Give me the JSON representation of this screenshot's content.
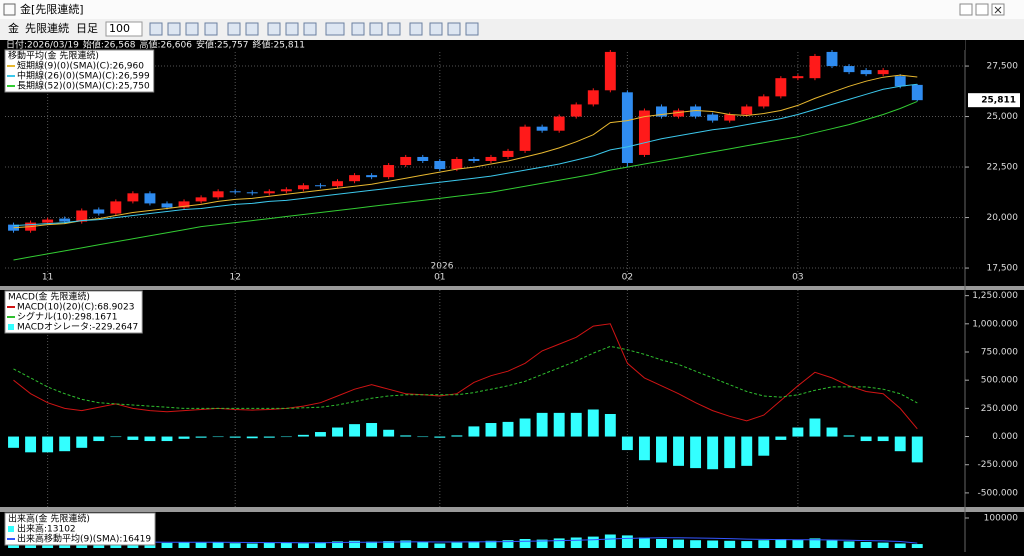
{
  "window": {
    "title": "金[先限連続]"
  },
  "toolbar": {
    "symbol": "金",
    "contract": "先限連続",
    "period": "日足",
    "count": 100
  },
  "chart_data": [
    {
      "type": "candlestick",
      "title": "移動平均(金 先限連続)",
      "header": [
        "日付:2026/03/19",
        "始値:26,568",
        "高値:26,606",
        "安値:25,757",
        "終値:25,811"
      ],
      "annotations": [
        "2026"
      ],
      "categories": [
        null,
        null,
        "11",
        null,
        null,
        null,
        null,
        null,
        null,
        null,
        null,
        null,
        null,
        "12",
        null,
        null,
        null,
        null,
        null,
        null,
        null,
        null,
        null,
        null,
        null,
        "01",
        null,
        null,
        null,
        null,
        null,
        null,
        null,
        null,
        null,
        null,
        "02",
        null,
        null,
        null,
        null,
        null,
        null,
        null,
        null,
        null,
        "03",
        null,
        null,
        null,
        null,
        null,
        null,
        null
      ],
      "open": [
        19650,
        19350,
        19750,
        19950,
        19800,
        20400,
        20200,
        20800,
        21200,
        20700,
        20500,
        20800,
        21000,
        21300,
        21250,
        21200,
        21300,
        21400,
        21600,
        21550,
        21800,
        22100,
        22000,
        22600,
        23000,
        22800,
        22400,
        22900,
        22800,
        23000,
        23300,
        24500,
        24300,
        25000,
        25600,
        26300,
        26200,
        23100,
        25500,
        25000,
        25500,
        25100,
        24800,
        25100,
        25500,
        26000,
        26900,
        26900,
        28200,
        27500,
        27300,
        27100,
        27000,
        26568
      ],
      "high": [
        19750,
        19850,
        20000,
        20050,
        20450,
        20500,
        20900,
        21300,
        21300,
        20800,
        20900,
        21100,
        21400,
        21400,
        21350,
        21400,
        21500,
        21700,
        21700,
        21900,
        22200,
        22200,
        22700,
        23100,
        23100,
        22900,
        23000,
        23000,
        23100,
        23400,
        24600,
        24600,
        25100,
        25700,
        26400,
        28400,
        26300,
        25400,
        25600,
        25400,
        25600,
        25200,
        25200,
        25600,
        26100,
        27000,
        27100,
        28100,
        28300,
        27600,
        27400,
        27400,
        27100,
        26606
      ],
      "low": [
        19250,
        19250,
        19650,
        19700,
        19700,
        20100,
        20100,
        20700,
        20600,
        20400,
        20400,
        20700,
        20900,
        21150,
        21100,
        21100,
        21200,
        21300,
        21450,
        21450,
        21700,
        21900,
        21900,
        22500,
        22700,
        22300,
        22300,
        22700,
        22700,
        22900,
        23200,
        24200,
        24200,
        24900,
        25500,
        26200,
        22500,
        23000,
        24900,
        24900,
        24900,
        24700,
        24700,
        25000,
        25400,
        25900,
        26800,
        26800,
        27400,
        27100,
        27000,
        27000,
        26400,
        25757
      ],
      "close": [
        19350,
        19750,
        19900,
        19800,
        20350,
        20200,
        20800,
        21200,
        20700,
        20500,
        20800,
        21000,
        21300,
        21250,
        21200,
        21300,
        21400,
        21600,
        21550,
        21800,
        22100,
        22000,
        22600,
        23000,
        22800,
        22400,
        22900,
        22800,
        23000,
        23300,
        24500,
        24300,
        25000,
        25600,
        26300,
        28200,
        22700,
        25300,
        25000,
        25300,
        25000,
        24800,
        25100,
        25500,
        26000,
        26900,
        27000,
        28000,
        27500,
        27200,
        27100,
        27300,
        26500,
        25811
      ],
      "up_color": "#ff1a1a",
      "down_color": "#2f8cf0",
      "last_price": {
        "value": 25811,
        "label": "25,811"
      },
      "series": [
        {
          "name": "短期線(9)(0)(SMA)(C):26,960",
          "color": "#e8b830",
          "style": "line",
          "values": [
            19500,
            19550,
            19650,
            19700,
            19850,
            19950,
            20100,
            20250,
            20350,
            20450,
            20550,
            20650,
            20800,
            20900,
            20950,
            21050,
            21150,
            21250,
            21350,
            21450,
            21550,
            21650,
            21800,
            21950,
            22100,
            22250,
            22400,
            22500,
            22650,
            22800,
            23000,
            23200,
            23450,
            23750,
            24100,
            24700,
            24800,
            25000,
            25100,
            25200,
            25300,
            25250,
            25100,
            25050,
            25150,
            25300,
            25550,
            25900,
            26200,
            26500,
            26750,
            26950,
            27050,
            26960
          ]
        },
        {
          "name": "中期線(26)(0)(SMA)(C):26,599",
          "color": "#3cc8ec",
          "style": "line",
          "values": [
            19600,
            19650,
            19700,
            19750,
            19850,
            19900,
            20000,
            20100,
            20200,
            20300,
            20400,
            20450,
            20550,
            20650,
            20700,
            20800,
            20850,
            20950,
            21050,
            21150,
            21250,
            21350,
            21450,
            21550,
            21650,
            21750,
            21850,
            21950,
            22050,
            22200,
            22350,
            22500,
            22650,
            22850,
            23050,
            23350,
            23500,
            23700,
            23900,
            24050,
            24200,
            24350,
            24450,
            24600,
            24750,
            24900,
            25100,
            25350,
            25600,
            25850,
            26100,
            26350,
            26500,
            26599
          ]
        },
        {
          "name": "長期線(52)(0)(SMA)(C):25,750",
          "color": "#33cc33",
          "style": "line",
          "values": [
            17900,
            18050,
            18200,
            18350,
            18500,
            18650,
            18800,
            18950,
            19100,
            19250,
            19400,
            19550,
            19650,
            19750,
            19850,
            19950,
            20050,
            20150,
            20250,
            20350,
            20450,
            20550,
            20650,
            20750,
            20850,
            20950,
            21050,
            21150,
            21250,
            21400,
            21550,
            21700,
            21850,
            22000,
            22150,
            22350,
            22500,
            22650,
            22800,
            22950,
            23100,
            23250,
            23400,
            23550,
            23700,
            23850,
            24000,
            24200,
            24400,
            24600,
            24850,
            25100,
            25400,
            25750
          ]
        }
      ],
      "ylim": [
        16760,
        28790
      ],
      "yticks": [
        {
          "value": 17500,
          "label": "17,500"
        },
        {
          "value": 20000,
          "label": "20,000"
        },
        {
          "value": 22500,
          "label": "22,500"
        },
        {
          "value": 25000,
          "label": "25,000"
        },
        {
          "value": 27500,
          "label": "27,500"
        }
      ],
      "grid": true
    },
    {
      "type": "macd",
      "title": "MACD(金 先限連続)",
      "series": [
        {
          "name": "MACD(10)(20)(C):68.9023",
          "color": "#d01414",
          "style": "line",
          "values": [
            500,
            380,
            300,
            250,
            230,
            260,
            290,
            250,
            230,
            220,
            230,
            240,
            250,
            240,
            235,
            240,
            250,
            270,
            300,
            360,
            420,
            460,
            420,
            380,
            370,
            360,
            380,
            480,
            540,
            580,
            650,
            760,
            820,
            880,
            980,
            1000,
            650,
            520,
            450,
            380,
            300,
            230,
            180,
            140,
            190,
            320,
            450,
            570,
            520,
            450,
            400,
            380,
            250,
            68.9023
          ]
        },
        {
          "name": "シグナル(10):298.1671",
          "color": "#2fbf2f",
          "style": "dashed",
          "values": [
            600,
            520,
            440,
            380,
            330,
            300,
            290,
            280,
            270,
            260,
            250,
            250,
            250,
            250,
            250,
            250,
            250,
            255,
            260,
            280,
            310,
            340,
            360,
            370,
            370,
            370,
            370,
            390,
            420,
            450,
            490,
            550,
            610,
            670,
            740,
            800,
            770,
            730,
            680,
            640,
            580,
            520,
            460,
            400,
            360,
            350,
            370,
            410,
            440,
            440,
            440,
            420,
            380,
            298.1671
          ]
        },
        {
          "name": "MACDオシレータ:-229.2647",
          "color": "#33ffff",
          "style": "bar",
          "values": [
            -100,
            -140,
            -140,
            -130,
            -100,
            -40,
            0,
            -30,
            -40,
            -40,
            -20,
            -10,
            0,
            -10,
            -15,
            -10,
            0,
            15,
            40,
            80,
            110,
            120,
            60,
            10,
            0,
            -10,
            10,
            90,
            120,
            130,
            160,
            210,
            210,
            210,
            240,
            200,
            -120,
            -210,
            -230,
            -260,
            -280,
            -290,
            -280,
            -260,
            -170,
            -30,
            80,
            160,
            80,
            10,
            -40,
            -40,
            -130,
            -229.2647
          ]
        }
      ],
      "ylim": [
        -625,
        1300
      ],
      "yticks": [
        {
          "value": -500,
          "label": "-500.000"
        },
        {
          "value": -250,
          "label": "-250.000"
        },
        {
          "value": 0,
          "label": "0.000"
        },
        {
          "value": 250,
          "label": "250.000"
        },
        {
          "value": 500,
          "label": "500.000"
        },
        {
          "value": 750,
          "label": "750.000"
        },
        {
          "value": 1000,
          "label": "1,000.000"
        },
        {
          "value": 1250,
          "label": "1,250.000"
        }
      ],
      "grid": false
    },
    {
      "type": "volume",
      "title": "出来高(金 先限連続)",
      "series": [
        {
          "name": "出来高:13102",
          "color": "#33ffff",
          "style": "bar",
          "values": [
            20000,
            22000,
            18000,
            17000,
            21000,
            19000,
            23000,
            20000,
            18000,
            17000,
            19000,
            18000,
            20000,
            16000,
            15000,
            17000,
            18000,
            16000,
            19000,
            22000,
            24000,
            21000,
            23000,
            25000,
            20000,
            15000,
            18000,
            22000,
            24000,
            26000,
            30000,
            28000,
            32000,
            35000,
            38000,
            45000,
            42000,
            35000,
            30000,
            28000,
            26000,
            25000,
            24000,
            23000,
            26000,
            30000,
            28000,
            32000,
            25000,
            22000,
            20000,
            18000,
            15000,
            13102
          ]
        },
        {
          "name": "出来高移動平均(9)(SMA):16419",
          "color": "#3355ff",
          "style": "line",
          "values": [
            20000,
            20500,
            20000,
            19700,
            19900,
            19800,
            20100,
            20000,
            19700,
            19400,
            19300,
            19200,
            19200,
            18700,
            18300,
            18000,
            17900,
            17700,
            17800,
            18300,
            18900,
            19300,
            19800,
            20300,
            20400,
            20000,
            19900,
            20200,
            20600,
            21300,
            22400,
            23300,
            24500,
            26000,
            27800,
            30000,
            32000,
            33200,
            34200,
            34300,
            33400,
            32600,
            31400,
            29800,
            28700,
            27900,
            27200,
            27300,
            26700,
            25700,
            24700,
            23800,
            21600,
            16419
          ]
        }
      ],
      "ylim": [
        0,
        120000
      ],
      "yticks": [
        100000
      ],
      "grid": false
    }
  ]
}
